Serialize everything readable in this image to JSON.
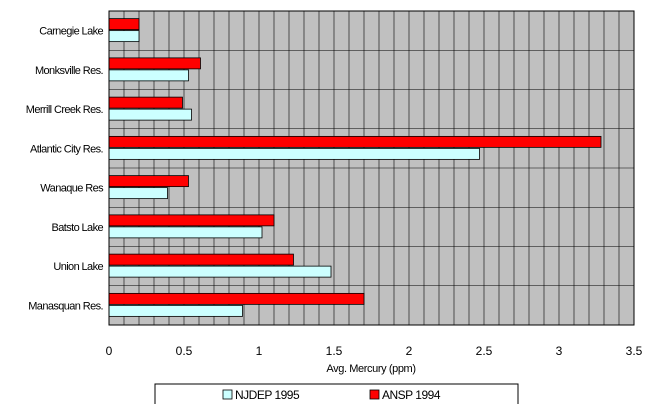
{
  "chart_data": {
    "type": "bar",
    "orientation": "horizontal",
    "categories": [
      "Carnegie Lake",
      "Monksville Res.",
      "Merrill Creek Res.",
      "Atlantic City Res.",
      "Wanaque Res",
      "Batsto Lake",
      "Union Lake",
      "Manasquan Res."
    ],
    "series": [
      {
        "name": "NJDEP 1995",
        "values": [
          0.2,
          0.53,
          0.55,
          2.47,
          0.39,
          1.02,
          1.48,
          0.89
        ],
        "color": "#ccffff"
      },
      {
        "name": "ANSP 1994",
        "values": [
          0.2,
          0.61,
          0.49,
          3.28,
          0.53,
          1.1,
          1.23,
          1.7
        ],
        "color": "#ff0000"
      }
    ],
    "xlabel": "Avg. Mercury (ppm)",
    "ylabel": "",
    "title": "",
    "xlim": [
      0,
      3.5
    ],
    "x_ticks": [
      "0",
      "0.5",
      "1",
      "1.5",
      "2",
      "2.5",
      "3",
      "3.5"
    ],
    "minor_grid_step": 0.1,
    "grid": true,
    "plot_background": "#c0c0c0",
    "legend_position": "bottom"
  }
}
